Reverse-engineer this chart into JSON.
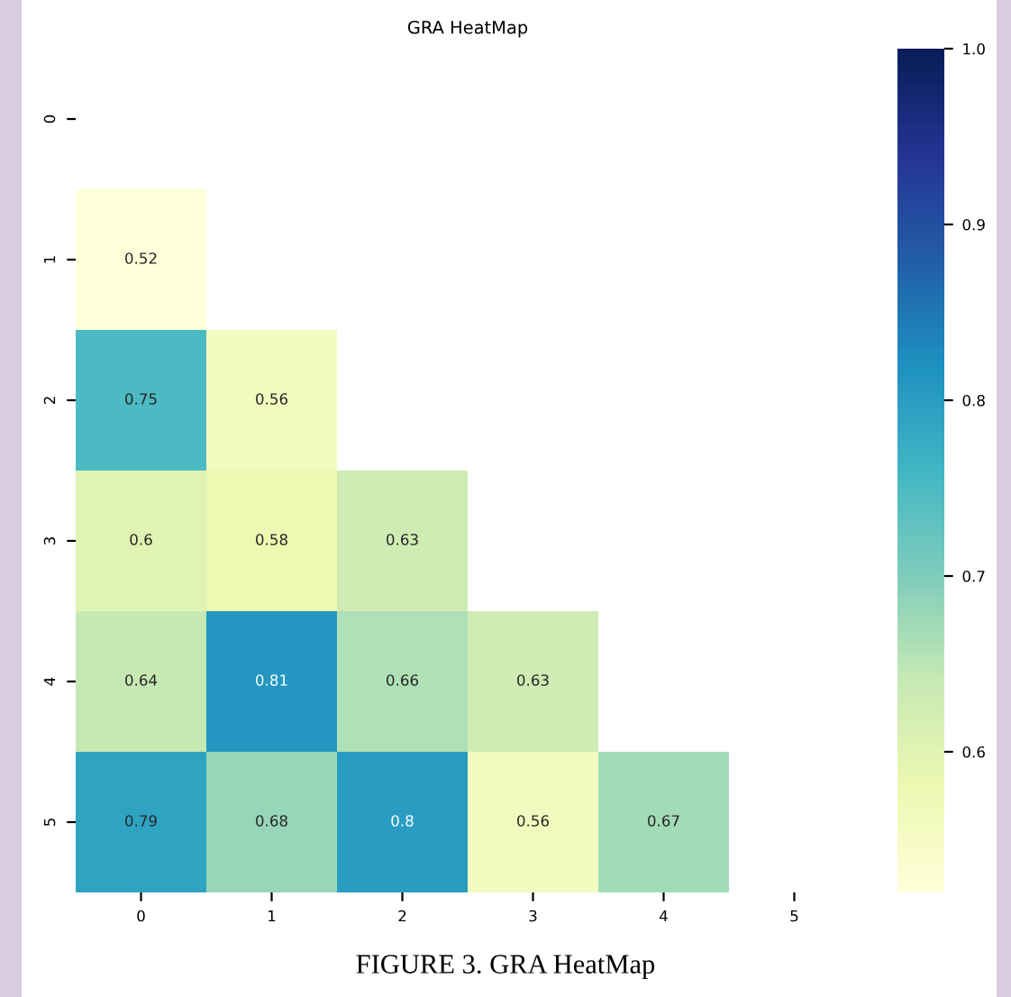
{
  "chart_data": {
    "type": "heatmap",
    "title": "GRA HeatMap",
    "categories": [
      "0",
      "1",
      "2",
      "3",
      "4",
      "5"
    ],
    "y_categories": [
      "0",
      "1",
      "2",
      "3",
      "4",
      "5"
    ],
    "cells": [
      [
        null,
        null,
        null,
        null,
        null,
        null
      ],
      [
        0.52,
        null,
        null,
        null,
        null,
        null
      ],
      [
        0.75,
        0.56,
        null,
        null,
        null,
        null
      ],
      [
        0.6,
        0.58,
        0.63,
        null,
        null,
        null
      ],
      [
        0.64,
        0.81,
        0.66,
        0.63,
        null,
        null
      ],
      [
        0.79,
        0.68,
        0.8,
        0.56,
        0.67,
        null
      ]
    ],
    "clim": [
      0.52,
      1.0
    ],
    "cticks": [
      0.6,
      0.7,
      0.8,
      0.9,
      {
        "value": 1,
        "label": "1.0"
      }
    ],
    "data_labels": true,
    "annotations": [
      "FIGURE 3. GRA HeatMap"
    ]
  }
}
